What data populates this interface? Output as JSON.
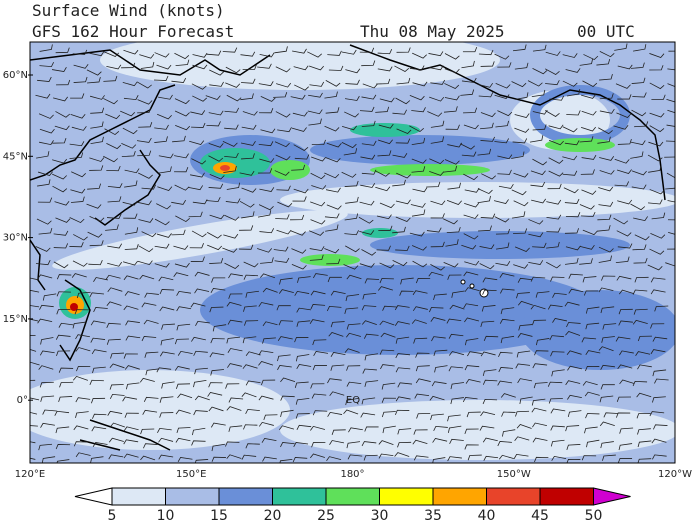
{
  "header": {
    "title": "Surface Wind (knots)",
    "subtitle": "GFS 162 Hour Forecast",
    "date": "Thu 08 May 2025",
    "time": "00 UTC"
  },
  "map": {
    "lat_labels": [
      "60°N",
      "45°N",
      "30°N",
      "15°N",
      "0°"
    ],
    "lon_labels": [
      "120°E",
      "150°E",
      "180°",
      "150°W",
      "120°W"
    ],
    "equator_label": "EQ"
  },
  "colorbar": {
    "ticks": [
      5,
      10,
      15,
      20,
      25,
      30,
      35,
      40,
      45,
      50
    ],
    "colors": [
      "#ffffff",
      "#dde8f5",
      "#a9bde6",
      "#6a8fd8",
      "#2fc19a",
      "#5fe05a",
      "#ffff00",
      "#ffa500",
      "#e8442a",
      "#c00000",
      "#d000d0"
    ]
  }
}
